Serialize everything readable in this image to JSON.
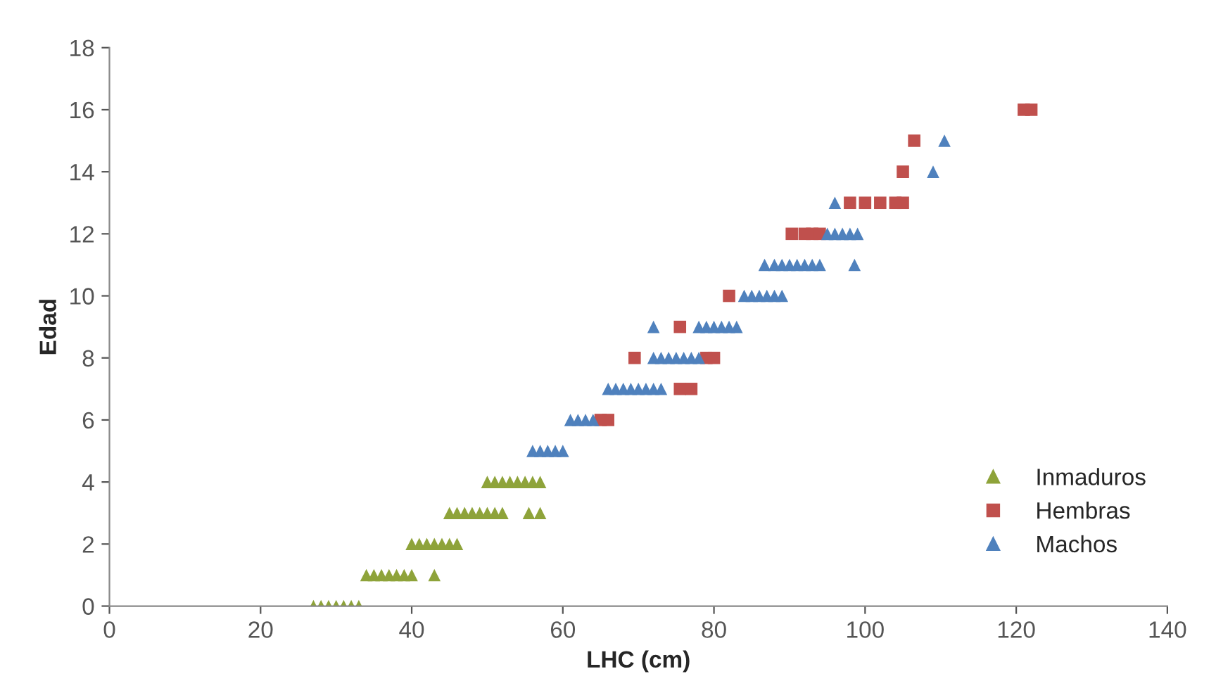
{
  "chart_data": {
    "type": "scatter",
    "xlabel": "LHC (cm)",
    "ylabel": "Edad",
    "xlim": [
      0,
      140
    ],
    "xticks": [
      0,
      20,
      40,
      60,
      80,
      100,
      120,
      140
    ],
    "ylim": [
      0,
      18
    ],
    "yticks": [
      0,
      2,
      4,
      6,
      8,
      10,
      12,
      14,
      16,
      18
    ],
    "grid": false,
    "legend": "bottom right",
    "series": [
      {
        "name": "Inmaduros",
        "color": "#8ea33a",
        "marker": "triangle",
        "x": [
          27,
          28,
          29,
          30,
          31,
          32,
          33,
          34,
          35,
          36,
          37,
          38,
          39,
          40,
          43,
          40,
          41,
          42,
          43,
          44,
          45,
          46,
          45,
          46,
          47,
          48,
          49,
          50,
          51,
          52,
          55.5,
          57,
          50,
          51,
          52,
          53,
          54,
          55,
          56,
          57
        ],
        "values": [
          0,
          0,
          0,
          0,
          0,
          0,
          0,
          1,
          1,
          1,
          1,
          1,
          1,
          1,
          1,
          2,
          2,
          2,
          2,
          2,
          2,
          2,
          3,
          3,
          3,
          3,
          3,
          3,
          3,
          3,
          3,
          3,
          4,
          4,
          4,
          4,
          4,
          4,
          4,
          4
        ]
      },
      {
        "name": "Hembras",
        "color": "#c0504d",
        "marker": "square",
        "x": [
          65,
          66,
          75.5,
          77,
          69.5,
          79,
          80,
          75.5,
          82,
          90.3,
          92,
          93,
          94,
          98,
          100,
          102,
          104,
          105,
          105,
          106.5,
          121,
          122
        ],
        "values": [
          6,
          6,
          7,
          7,
          8,
          8,
          8,
          9,
          10,
          12,
          12,
          12,
          12,
          13,
          13,
          13,
          13,
          13,
          14,
          15,
          16,
          16
        ]
      },
      {
        "name": "Machos",
        "color": "#4f81bd",
        "marker": "triangle",
        "x": [
          56,
          57,
          58,
          59,
          60,
          61,
          62,
          63,
          64,
          66,
          67,
          68,
          69,
          70,
          71,
          72,
          73,
          72,
          73,
          74,
          75,
          76,
          77,
          78,
          72,
          78,
          79,
          80,
          81,
          82,
          83,
          84,
          85,
          86,
          87,
          88,
          89,
          86.7,
          88,
          89,
          90,
          91,
          92,
          93,
          94,
          98.6,
          95,
          96,
          97,
          98,
          99,
          96,
          109,
          110.5
        ],
        "values": [
          5,
          5,
          5,
          5,
          5,
          6,
          6,
          6,
          6,
          7,
          7,
          7,
          7,
          7,
          7,
          7,
          7,
          8,
          8,
          8,
          8,
          8,
          8,
          8,
          9,
          9,
          9,
          9,
          9,
          9,
          9,
          10,
          10,
          10,
          10,
          10,
          10,
          11,
          11,
          11,
          11,
          11,
          11,
          11,
          11,
          11,
          12,
          12,
          12,
          12,
          12,
          13,
          14,
          15
        ]
      }
    ]
  }
}
